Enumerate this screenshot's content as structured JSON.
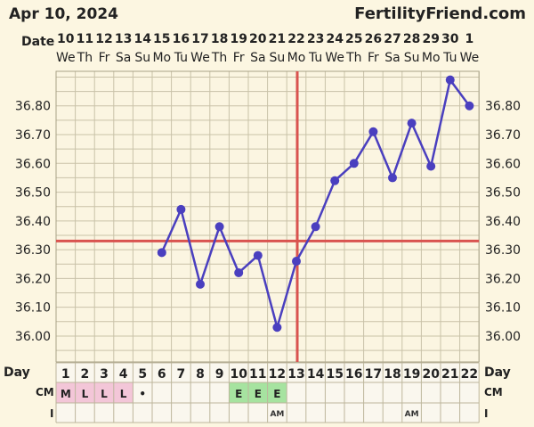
{
  "header": {
    "date": "Apr 10, 2024",
    "site": "FertilityFriend.com"
  },
  "row_labels": {
    "date": "Date",
    "day": "Day",
    "cm": "CM",
    "intercourse": "I"
  },
  "chart_data": {
    "type": "line",
    "x_dates": [
      "10",
      "11",
      "12",
      "13",
      "14",
      "15",
      "16",
      "17",
      "18",
      "19",
      "20",
      "21",
      "22",
      "23",
      "24",
      "25",
      "26",
      "27",
      "28",
      "29",
      "30",
      "1"
    ],
    "x_weekdays": [
      "We",
      "Th",
      "Fr",
      "Sa",
      "Su",
      "Mo",
      "Tu",
      "We",
      "Th",
      "Fr",
      "Sa",
      "Su",
      "Mo",
      "Tu",
      "We",
      "Th",
      "Fr",
      "Sa",
      "Su",
      "Mo",
      "Tu",
      "We"
    ],
    "cycle_days": [
      "1",
      "2",
      "3",
      "4",
      "5",
      "6",
      "7",
      "8",
      "9",
      "10",
      "11",
      "12",
      "13",
      "14",
      "15",
      "16",
      "17",
      "18",
      "19",
      "20",
      "21",
      "22"
    ],
    "y_ticks": [
      "36.80",
      "36.70",
      "36.60",
      "36.50",
      "36.40",
      "36.30",
      "36.20",
      "36.10",
      "36.00"
    ],
    "ylim": [
      35.91,
      36.92
    ],
    "series": [
      {
        "cycle_day": [
          6,
          7,
          8,
          9,
          10,
          11,
          12,
          13,
          14,
          15,
          16,
          17,
          18,
          19,
          20,
          21,
          22
        ],
        "values": [
          36.29,
          36.44,
          36.18,
          36.38,
          36.22,
          36.28,
          36.03,
          36.26,
          36.38,
          36.54,
          36.6,
          36.71,
          36.55,
          36.74,
          36.59,
          36.89,
          36.8
        ]
      }
    ],
    "coverline": 36.33,
    "ovulation_day": 13,
    "cervical_mucus": [
      "M",
      "L",
      "L",
      "L",
      "•",
      "",
      "",
      "",
      "",
      "E",
      "E",
      "E",
      "",
      "",
      "",
      "",
      "",
      "",
      "",
      "",
      "",
      ""
    ],
    "intercourse": [
      "",
      "",
      "",
      "",
      "",
      "",
      "",
      "",
      "",
      "",
      "",
      "AM",
      "",
      "",
      "",
      "",
      "",
      "",
      "AM",
      "",
      "",
      ""
    ],
    "colors": {
      "line": "#4a3fbf",
      "coverline": "#d9534f",
      "ovulation": "#d9534f",
      "menses_fill": "#f3c6d8",
      "egg_white_fill": "#a6e3a0",
      "grid": "#c9c2a8",
      "plot_bg": "#fbf5e1"
    }
  }
}
